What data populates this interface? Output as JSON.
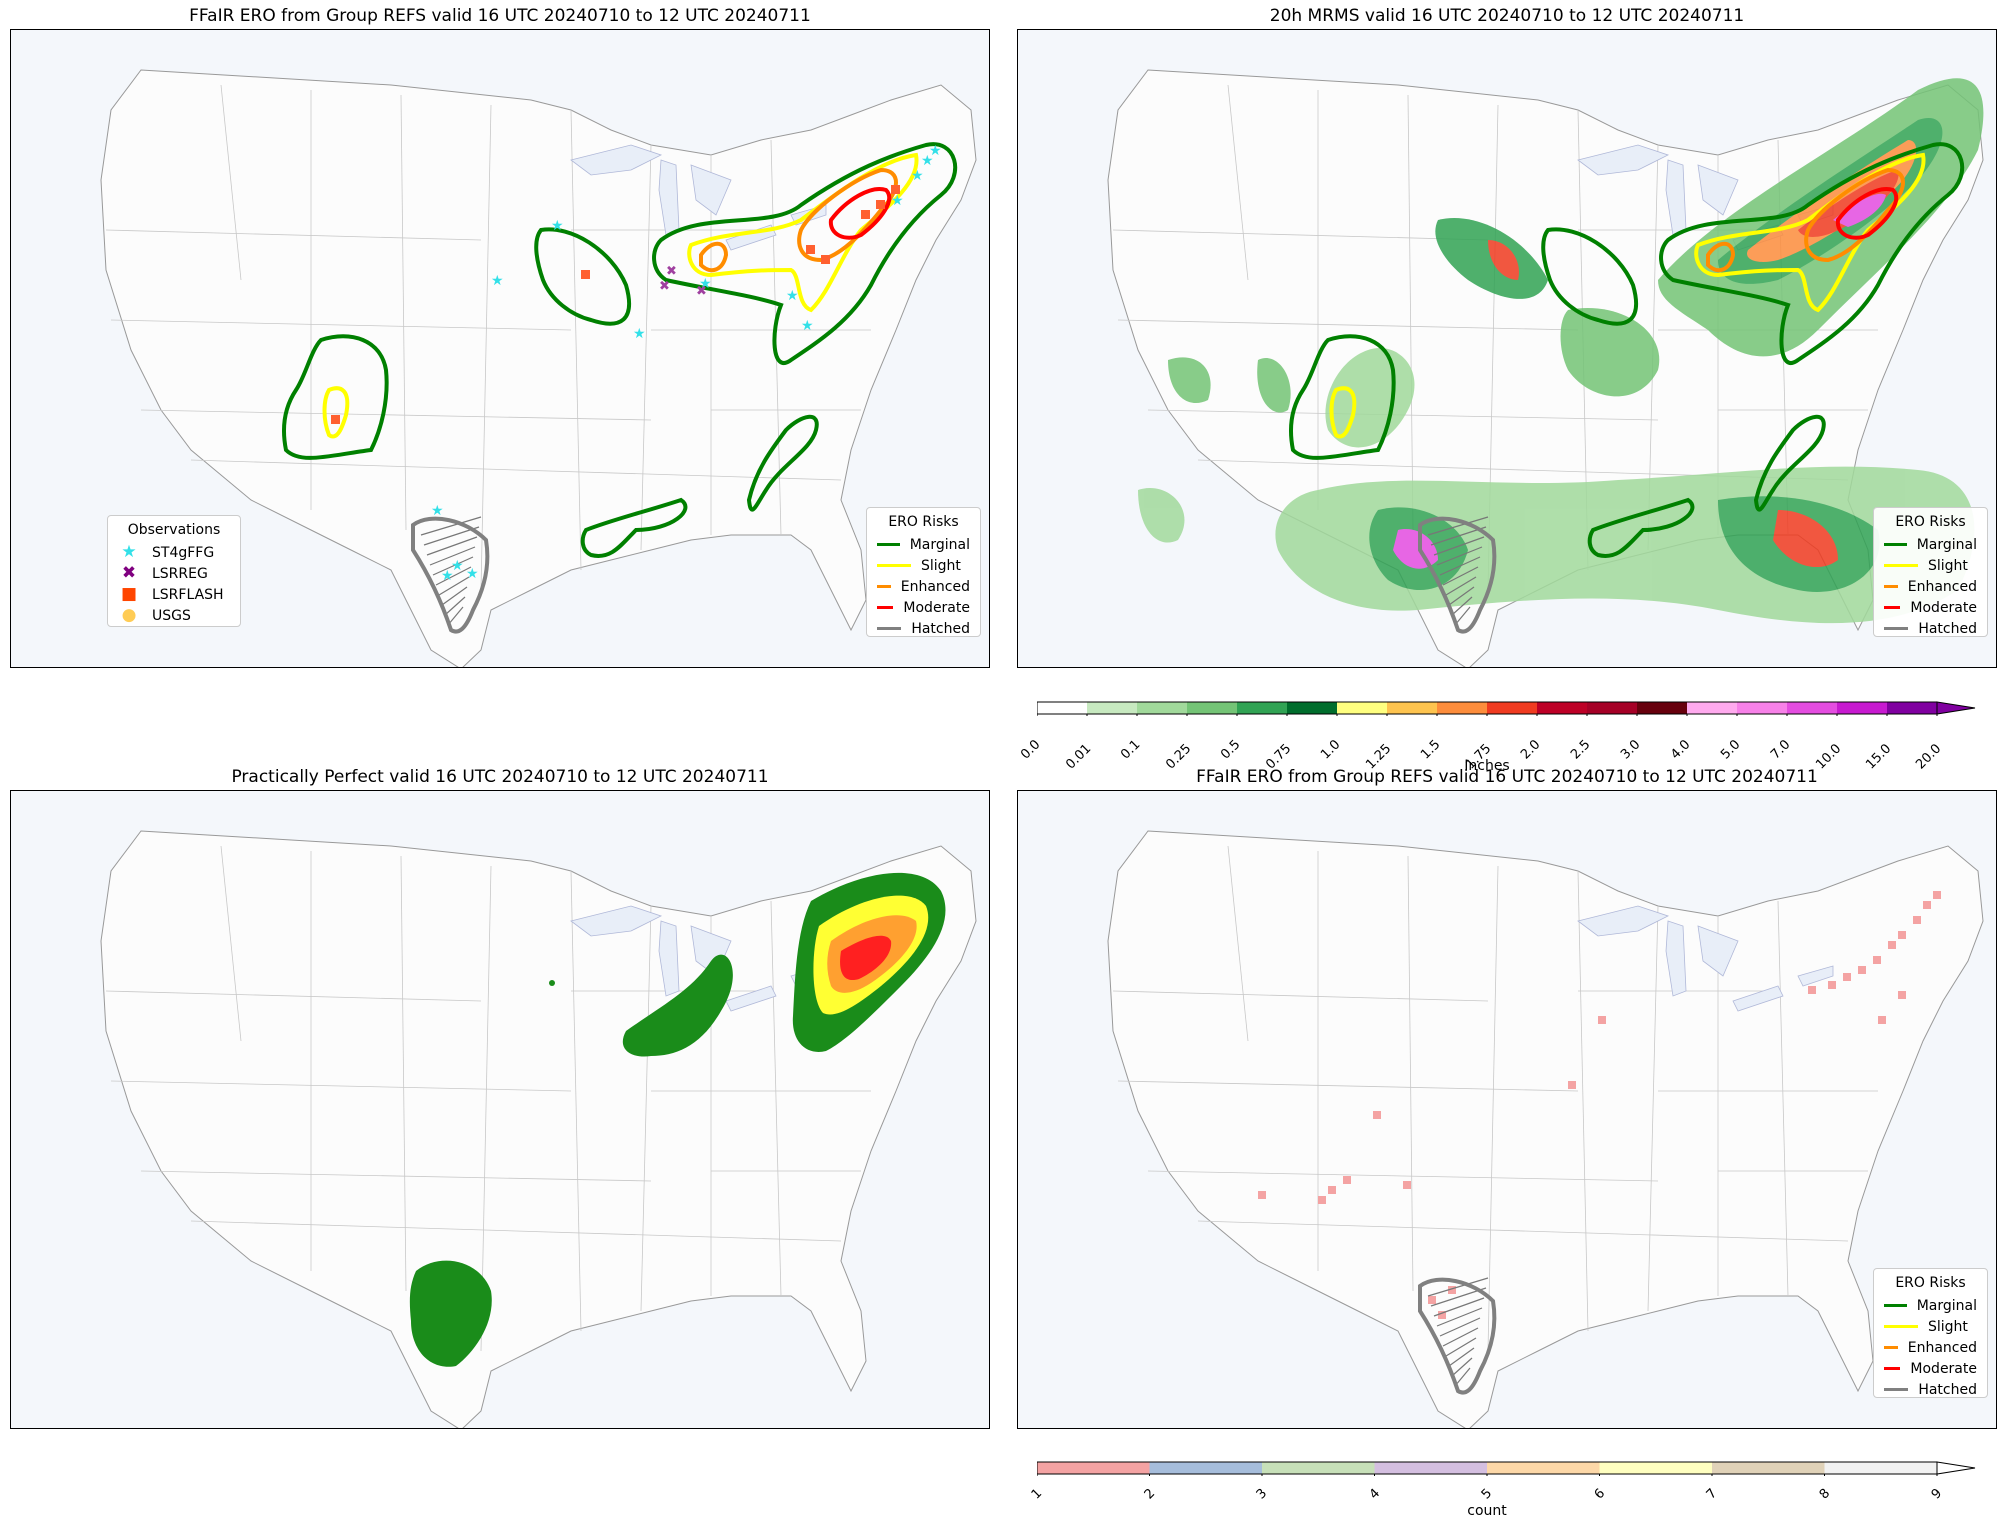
{
  "panels": {
    "p1": {
      "title": "FFaIR ERO from Group REFS valid 16 UTC 20240710 to 12 UTC 20240711"
    },
    "p2": {
      "title": "20h MRMS valid 16 UTC 20240710 to 12 UTC 20240711"
    },
    "p3": {
      "title": "Practically Perfect valid 16 UTC 20240710 to 12 UTC 20240711"
    },
    "p4": {
      "title": "FFaIR ERO from Group REFS valid 16 UTC 20240710 to 12 UTC 20240711"
    }
  },
  "ero_legend": {
    "title": "ERO Risks",
    "items": [
      {
        "label": "Marginal",
        "color": "#008000"
      },
      {
        "label": "Slight",
        "color": "#ffff00"
      },
      {
        "label": "Enhanced",
        "color": "#ff8c00"
      },
      {
        "label": "Moderate",
        "color": "#ff0000"
      },
      {
        "label": "Hatched",
        "color": "#808080"
      }
    ]
  },
  "obs_legend": {
    "title": "Observations",
    "items": [
      {
        "label": "ST4gFFG",
        "symbol": "★",
        "color": "#33e0e8"
      },
      {
        "label": "LSRREG",
        "symbol": "✖",
        "color": "#800080"
      },
      {
        "label": "LSRFLASH",
        "symbol": "■",
        "color": "#ff4500"
      },
      {
        "label": "USGS",
        "symbol": "●",
        "color": "#ffcc55"
      }
    ]
  },
  "precip_colorbar": {
    "label": "Inches",
    "ticks": [
      "0.0",
      "0.01",
      "0.1",
      "0.25",
      "0.5",
      "0.75",
      "1.0",
      "1.25",
      "1.5",
      "1.75",
      "2.0",
      "2.5",
      "3.0",
      "4.0",
      "5.0",
      "7.0",
      "10.0",
      "15.0",
      "20.0"
    ],
    "colors": [
      "#ffffff",
      "#c7e9c0",
      "#a1d99b",
      "#74c476",
      "#31a354",
      "#006d2c",
      "#ffff80",
      "#fec44f",
      "#fd8d3c",
      "#f03b20",
      "#bd0026",
      "#a50026",
      "#67000d",
      "#ffaaee",
      "#f781e8",
      "#e44de0",
      "#c71ad0",
      "#8000a0"
    ]
  },
  "count_colorbar": {
    "label": "count",
    "ticks": [
      "1",
      "2",
      "3",
      "4",
      "5",
      "6",
      "7",
      "8",
      "9"
    ],
    "colors": [
      "#f4a3a3",
      "#a6bddb",
      "#c7e0b9",
      "#d4bfe0",
      "#fdd8a8",
      "#ffffc0",
      "#e0d2b8",
      "#f2f2f2"
    ]
  }
}
